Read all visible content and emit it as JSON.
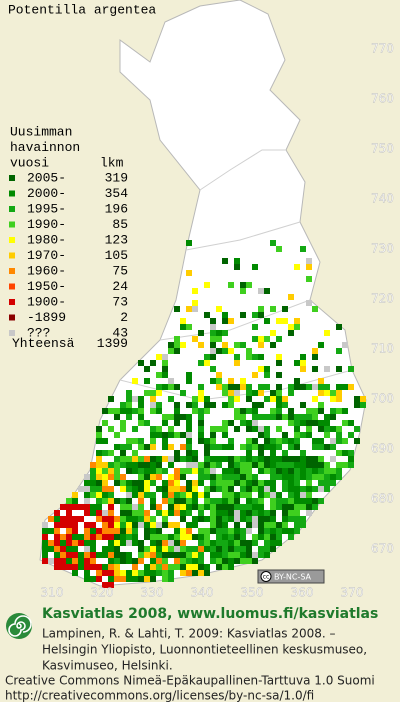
{
  "title": "Potentilla argentea",
  "legend": {
    "heading": [
      "Uusimman",
      "havainnon",
      "vuosi"
    ],
    "count_heading": "lkm",
    "entries": [
      {
        "label": "2005-",
        "count": 319,
        "color": "#006400"
      },
      {
        "label": "2000-",
        "count": 354,
        "color": "#008a00"
      },
      {
        "label": "1995-",
        "count": 196,
        "color": "#13a813"
      },
      {
        "label": "1990-",
        "count": 85,
        "color": "#3fcf1f"
      },
      {
        "label": "1980-",
        "count": 123,
        "color": "#ffff00"
      },
      {
        "label": "1970-",
        "count": 105,
        "color": "#ffcc00"
      },
      {
        "label": "1960-",
        "count": 75,
        "color": "#ff8800"
      },
      {
        "label": "1950-",
        "count": 24,
        "color": "#ff4400"
      },
      {
        "label": "1900-",
        "count": 73,
        "color": "#d40000"
      },
      {
        "label": "-1899",
        "count": 2,
        "color": "#8b0000"
      },
      {
        "label": "???",
        "count": 43,
        "color": "#c8c8c8"
      }
    ],
    "total_label": "Yhteensä",
    "total": 1399
  },
  "x_ticks": [
    310,
    320,
    330,
    340,
    350,
    360,
    370
  ],
  "y_ticks": [
    670,
    680,
    690,
    700,
    710,
    720,
    730,
    740,
    750,
    760,
    770
  ],
  "license_badge": {
    "cc": "cc",
    "text": "BY-NC-SA"
  },
  "footer": {
    "brand": "Kasviatlas 2008, www.luomus.fi/kasviatlas",
    "citation": [
      "Lampinen, R. & Lahti, T. 2009: Kasviatlas 2008. –",
      "Helsingin Yliopisto, Luonnontieteellinen keskusmuseo,",
      "Kasvimuseo, Helsinki."
    ],
    "license": [
      "Creative Commons Nimeä-Epäkaupallinen-Tarttuva 1.0 Suomi",
      "http://creativecommons.org/licenses/by-nc-sa/1.0/fi"
    ]
  }
}
